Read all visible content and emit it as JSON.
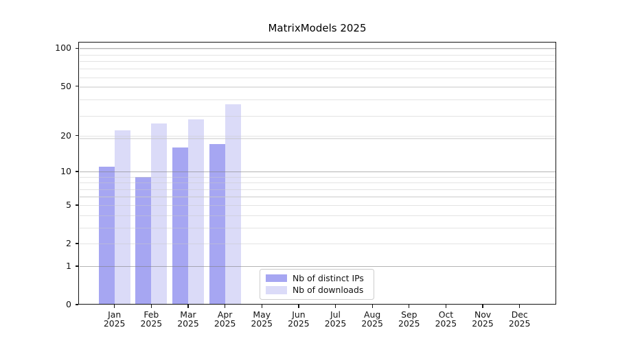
{
  "chart_data": {
    "type": "bar",
    "title": "MatrixModels 2025",
    "categories": [
      "Jan 2025",
      "Feb 2025",
      "Mar 2025",
      "Apr 2025",
      "May 2025",
      "Jun 2025",
      "Jul 2025",
      "Aug 2025",
      "Sep 2025",
      "Oct 2025",
      "Nov 2025",
      "Dec 2025"
    ],
    "series": [
      {
        "name": "Nb of distinct IPs",
        "color": "#a6a6f2",
        "values": [
          11,
          9,
          16,
          17,
          null,
          null,
          null,
          null,
          null,
          null,
          null,
          null
        ]
      },
      {
        "name": "Nb of downloads",
        "color": "#dbdbf8",
        "values": [
          22,
          25,
          27,
          36,
          null,
          null,
          null,
          null,
          null,
          null,
          null,
          null
        ]
      }
    ],
    "y_axis": {
      "scale": "log10(value+1)",
      "ticks": [
        0,
        1,
        2,
        5,
        10,
        20,
        50,
        100
      ],
      "minor_ticks": [
        3,
        4,
        6,
        7,
        8,
        9,
        19,
        29,
        39,
        49,
        59,
        69,
        79,
        89,
        99
      ],
      "emphasized_gridlines": [
        1,
        10,
        100
      ],
      "range": [
        0,
        112
      ]
    },
    "legend": {
      "position": "lower-center"
    },
    "grid": {
      "major_color": "rgba(125,125,125,0.58)",
      "minor_color": "rgba(200,200,200,0.5)"
    }
  },
  "colors": {
    "background": "#ffffff",
    "spine": "#111111",
    "text": "#111111",
    "legend_border": "#cccccc"
  }
}
